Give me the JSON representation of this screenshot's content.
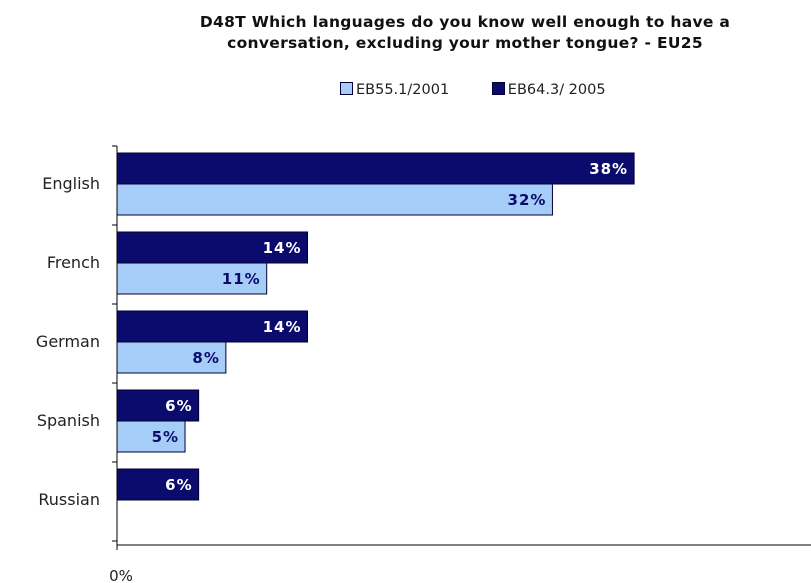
{
  "chart_data": {
    "type": "bar",
    "orientation": "horizontal",
    "title_lines": [
      "D48T Which languages do you know well enough to have a",
      "conversation, excluding your mother tongue? - EU25"
    ],
    "categories": [
      "English",
      "French",
      "German",
      "Spanish",
      "Russian"
    ],
    "series": [
      {
        "name": "EB55.1/2001",
        "color": "#a6cdf7",
        "values": [
          32,
          11,
          8,
          5,
          null
        ],
        "labels": [
          "32%",
          "11%",
          "8%",
          "5%",
          ""
        ]
      },
      {
        "name": "EB64.3/ 2005",
        "color": "#0b0b6e",
        "values": [
          38,
          14,
          14,
          6,
          6
        ],
        "labels": [
          "38%",
          "14%",
          "14%",
          "6%",
          "6%"
        ]
      }
    ],
    "x_tick_labels": [
      "0%"
    ],
    "xlim": [
      0,
      51
    ],
    "legend_position": "top",
    "grid": false
  }
}
